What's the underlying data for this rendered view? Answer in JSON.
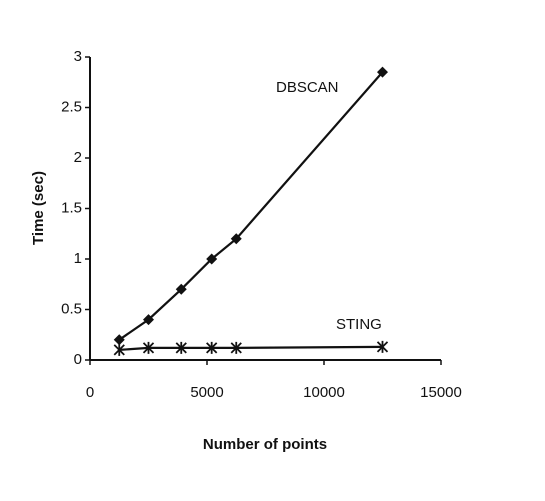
{
  "chart_data": {
    "type": "line",
    "title": "",
    "xlabel": "Number of points",
    "ylabel": "Time (sec)",
    "xlim": [
      0,
      15000
    ],
    "ylim": [
      0,
      3
    ],
    "x_ticks": [
      0,
      5000,
      10000,
      15000
    ],
    "x_tick_labels": [
      "0",
      "5000",
      "10000",
      "15000"
    ],
    "y_ticks": [
      0,
      0.5,
      1,
      1.5,
      2,
      2.5,
      3
    ],
    "y_tick_labels": [
      "0",
      "0.5",
      "1",
      "1.5",
      "2",
      "2.5",
      "3"
    ],
    "grid": false,
    "legend": "none (series labeled inline)",
    "series": [
      {
        "name": "DBSCAN",
        "marker": "diamond",
        "color": "#111111",
        "x": [
          1250,
          2500,
          3900,
          5200,
          6250,
          12500
        ],
        "y": [
          0.2,
          0.4,
          0.7,
          1.0,
          1.2,
          2.85
        ]
      },
      {
        "name": "STING",
        "marker": "asterisk",
        "color": "#111111",
        "x": [
          1250,
          2500,
          3900,
          5200,
          6250,
          12500
        ],
        "y": [
          0.1,
          0.12,
          0.12,
          0.12,
          0.12,
          0.13
        ]
      }
    ]
  }
}
